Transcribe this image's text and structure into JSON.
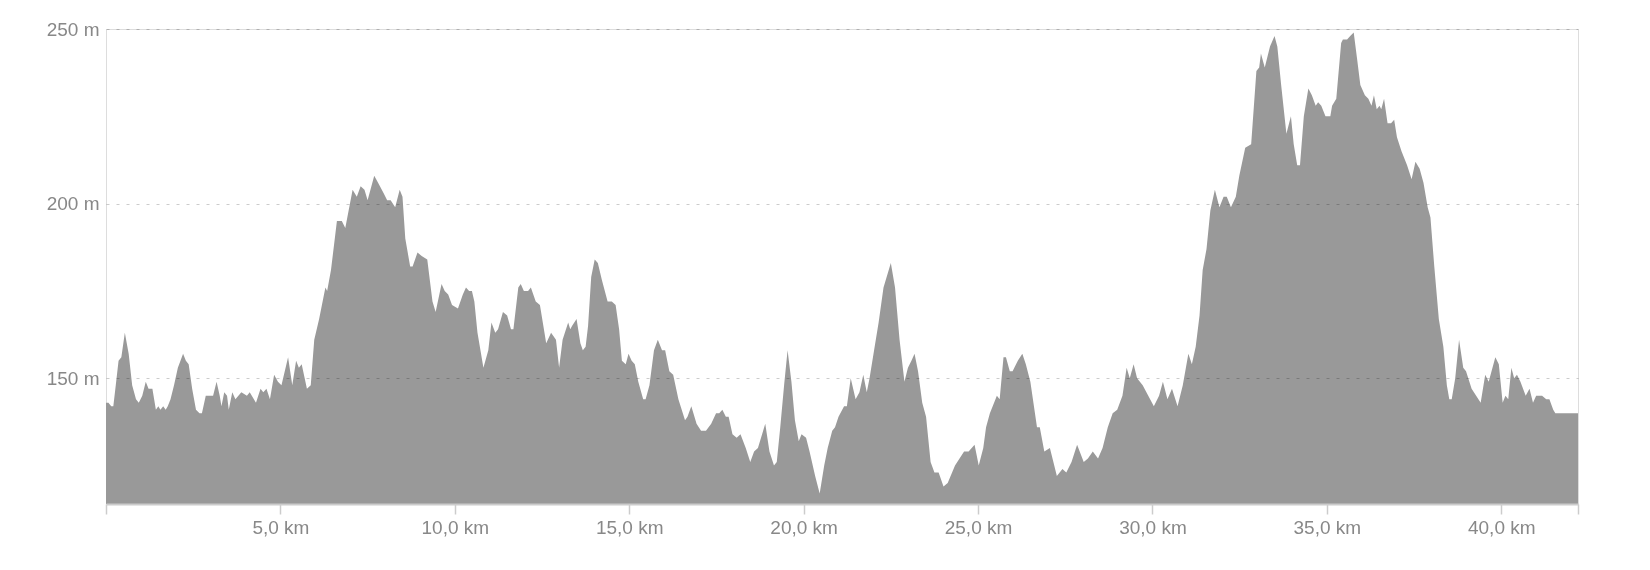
{
  "chart_data": {
    "type": "area",
    "x": [
      0,
      0.07,
      0.15,
      0.21,
      0.28,
      0.36,
      0.44,
      0.54,
      0.65,
      0.75,
      0.86,
      0.94,
      1.04,
      1.14,
      1.22,
      1.33,
      1.43,
      1.5,
      1.56,
      1.64,
      1.71,
      1.77,
      1.85,
      1.95,
      2.06,
      2.21,
      2.29,
      2.37,
      2.47,
      2.58,
      2.68,
      2.75,
      2.86,
      2.96,
      3.07,
      3.17,
      3.26,
      3.31,
      3.39,
      3.47,
      3.52,
      3.62,
      3.71,
      3.88,
      4.04,
      4.12,
      4.3,
      4.43,
      4.51,
      4.6,
      4.7,
      4.82,
      4.93,
      5.03,
      5.22,
      5.34,
      5.45,
      5.53,
      5.61,
      5.76,
      5.87,
      5.97,
      6.11,
      6.29,
      6.34,
      6.45,
      6.62,
      6.76,
      6.86,
      7.07,
      7.19,
      7.3,
      7.41,
      7.5,
      7.69,
      7.8,
      7.96,
      8.06,
      8.16,
      8.29,
      8.42,
      8.5,
      8.58,
      8.72,
      8.79,
      8.93,
      9.05,
      9.21,
      9.36,
      9.45,
      9.62,
      9.71,
      9.81,
      9.92,
      10.09,
      10.23,
      10.32,
      10.41,
      10.49,
      10.56,
      10.65,
      10.82,
      10.96,
      11.05,
      11.16,
      11.24,
      11.38,
      11.5,
      11.61,
      11.68,
      11.82,
      11.89,
      11.98,
      12.1,
      12.18,
      12.32,
      12.44,
      12.62,
      12.76,
      12.9,
      12.99,
      13.09,
      13.25,
      13.31,
      13.36,
      13.49,
      13.6,
      13.67,
      13.75,
      13.82,
      13.91,
      14.01,
      14.1,
      14.22,
      14.38,
      14.5,
      14.61,
      14.71,
      14.79,
      14.9,
      14.98,
      15.07,
      15.16,
      15.26,
      15.4,
      15.47,
      15.58,
      15.71,
      15.82,
      15.94,
      16.03,
      16.15,
      16.26,
      16.41,
      16.6,
      16.67,
      16.78,
      16.93,
      17.06,
      17.2,
      17.35,
      17.49,
      17.58,
      17.67,
      17.77,
      17.85,
      17.96,
      18.08,
      18.19,
      18.34,
      18.47,
      18.58,
      18.69,
      18.9,
      19.02,
      19.15,
      19.23,
      19.33,
      19.44,
      19.54,
      19.65,
      19.75,
      19.86,
      19.94,
      20.07,
      20.17,
      20.33,
      20.46,
      20.59,
      20.69,
      20.82,
      20.9,
      21.0,
      21.16,
      21.24,
      21.35,
      21.49,
      21.6,
      21.71,
      21.81,
      21.89,
      22.02,
      22.15,
      22.29,
      22.5,
      22.62,
      22.75,
      22.89,
      22.99,
      23.09,
      23.18,
      23.28,
      23.4,
      23.51,
      23.64,
      23.75,
      23.87,
      24.01,
      24.13,
      24.34,
      24.6,
      24.73,
      24.9,
      25.02,
      25.15,
      25.23,
      25.34,
      25.42,
      25.54,
      25.62,
      25.73,
      25.8,
      25.91,
      25.99,
      26.14,
      26.27,
      26.37,
      26.5,
      26.69,
      26.77,
      26.9,
      27.06,
      27.26,
      27.42,
      27.53,
      27.68,
      27.84,
      28.03,
      28.15,
      28.29,
      28.44,
      28.57,
      28.72,
      28.86,
      28.99,
      29.14,
      29.26,
      29.35,
      29.46,
      29.56,
      29.72,
      29.88,
      30.04,
      30.19,
      30.3,
      30.43,
      30.56,
      30.72,
      30.87,
      31.03,
      31.13,
      31.24,
      31.35,
      31.44,
      31.55,
      31.66,
      31.79,
      31.92,
      32.04,
      32.13,
      32.25,
      32.39,
      32.49,
      32.66,
      32.83,
      32.98,
      33.06,
      33.11,
      33.22,
      33.37,
      33.5,
      33.58,
      33.69,
      33.84,
      33.97,
      34.05,
      34.15,
      34.23,
      34.34,
      34.47,
      34.57,
      34.68,
      34.75,
      34.84,
      34.96,
      35.1,
      35.15,
      35.27,
      35.41,
      35.46,
      35.58,
      35.67,
      35.77,
      35.86,
      35.96,
      36.09,
      36.19,
      36.28,
      36.35,
      36.43,
      36.51,
      36.56,
      36.64,
      36.74,
      36.84,
      36.93,
      37.01,
      37.14,
      37.3,
      37.43,
      37.54,
      37.66,
      37.77,
      37.89,
      37.97,
      38.08,
      38.21,
      38.34,
      38.44,
      38.51,
      38.58,
      38.68,
      38.79,
      38.91,
      38.99,
      39.15,
      39.28,
      39.41,
      39.54,
      39.64,
      39.83,
      39.93,
      40.04,
      40.12,
      40.2,
      40.29,
      40.37,
      40.45,
      40.55,
      40.7,
      40.81,
      40.91,
      41.0,
      41.17,
      41.29,
      41.38,
      41.49,
      41.55,
      42.2
    ],
    "series": [
      {
        "color": "#999999",
        "values": [
          143,
          143,
          142,
          142,
          148,
          155,
          156,
          163,
          157,
          148,
          144,
          143,
          145,
          149,
          147,
          147,
          141,
          142,
          141,
          142,
          141,
          142,
          144,
          148,
          153,
          157,
          155,
          154,
          147,
          141,
          140,
          140,
          145,
          145,
          145,
          149,
          145,
          142,
          146,
          145,
          141,
          146,
          144,
          146,
          145,
          146,
          143,
          147,
          146,
          147,
          144,
          151,
          149,
          148,
          156,
          148,
          155,
          153,
          154,
          147,
          148,
          161,
          167,
          176,
          175,
          181,
          195,
          195,
          193,
          204,
          202,
          205,
          204,
          201,
          208,
          206,
          203,
          201,
          201,
          199,
          204,
          202,
          190,
          182,
          182,
          186,
          185,
          184,
          172,
          169,
          177,
          175,
          174,
          171,
          170,
          174,
          176,
          175,
          175,
          172,
          163,
          153,
          158,
          166,
          163,
          164,
          169,
          168,
          164,
          164,
          176,
          177,
          175,
          175,
          176,
          172,
          171,
          160,
          163,
          161,
          153,
          161,
          166,
          164,
          165,
          167,
          160,
          158,
          159,
          165,
          179,
          184,
          183,
          178,
          172,
          172,
          171,
          164,
          155,
          154,
          157,
          155,
          154,
          149,
          144,
          144,
          148,
          158,
          161,
          158,
          158,
          152,
          151,
          144,
          138,
          139,
          142,
          137,
          135,
          135,
          137,
          140,
          140,
          141,
          139,
          139,
          134,
          133,
          134,
          130,
          126,
          129,
          130,
          137,
          129,
          125,
          126,
          136,
          148,
          158,
          149,
          138,
          132,
          134,
          133,
          129,
          122,
          117,
          125,
          130,
          135,
          136,
          139,
          142,
          142,
          150,
          144,
          146,
          151,
          146,
          150,
          158,
          166,
          176,
          183,
          176,
          161,
          149,
          153,
          155,
          157,
          152,
          143,
          139,
          126,
          123,
          123,
          119,
          120,
          125,
          129,
          129,
          131,
          125,
          130,
          136,
          140,
          142,
          145,
          144,
          156,
          156,
          152,
          152,
          155,
          157,
          154,
          149,
          136,
          136,
          129,
          130,
          122,
          124,
          123,
          126,
          131,
          126,
          127,
          129,
          127,
          130,
          136,
          140,
          141,
          145,
          153,
          150,
          154,
          150,
          148,
          145,
          142,
          145,
          149,
          144,
          147,
          142,
          148,
          157,
          154,
          159,
          168,
          181,
          187,
          198,
          204,
          199,
          202,
          202,
          199,
          202,
          208,
          216,
          217,
          238,
          239,
          243,
          239,
          245,
          248,
          245,
          234,
          220,
          225,
          217,
          211,
          211,
          225,
          233,
          231,
          228,
          229,
          228,
          225,
          225,
          228,
          230,
          246,
          247,
          247,
          248,
          249,
          242,
          234,
          231,
          230,
          228,
          231,
          227,
          228,
          227,
          230,
          223,
          223,
          224,
          219,
          215,
          211,
          207,
          212,
          210,
          206,
          199,
          196,
          182,
          167,
          159,
          148,
          144,
          144,
          150,
          161,
          153,
          152,
          147,
          145,
          143,
          151,
          149,
          156,
          154,
          143,
          145,
          144,
          153,
          150,
          151,
          149,
          145,
          147,
          143,
          145,
          145,
          144,
          144,
          141,
          140,
          140
        ]
      }
    ],
    "xlim": [
      0,
      42.2
    ],
    "ylim": [
      114,
      250
    ],
    "xticks": [
      {
        "value": 0,
        "label": null
      },
      {
        "value": 5,
        "label": "5,0 km"
      },
      {
        "value": 10,
        "label": "10,0 km"
      },
      {
        "value": 15,
        "label": "15,0 km"
      },
      {
        "value": 20,
        "label": "20,0 km"
      },
      {
        "value": 25,
        "label": "25,0 km"
      },
      {
        "value": 30,
        "label": "30,0 km"
      },
      {
        "value": 35,
        "label": "35,0 km"
      },
      {
        "value": 40,
        "label": "40,0 km"
      },
      {
        "value": 42.2,
        "label": null
      }
    ],
    "yticks": [
      {
        "value": 150,
        "label": "150 m"
      },
      {
        "value": 200,
        "label": "200 m"
      },
      {
        "value": 250,
        "label": "250 m"
      }
    ],
    "grid": "y"
  }
}
